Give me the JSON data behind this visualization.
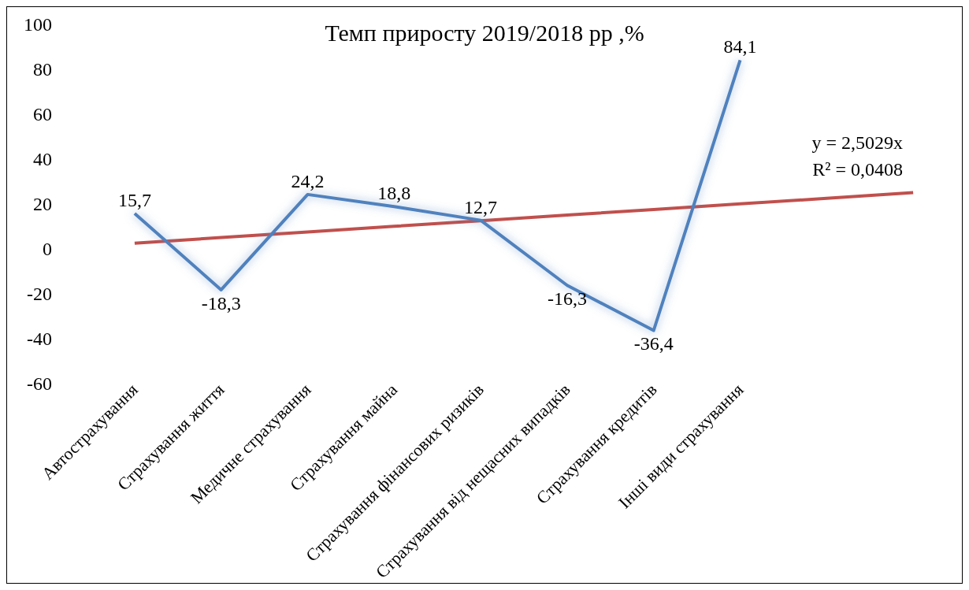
{
  "chart_data": {
    "type": "line",
    "title": "Темп приросту 2019/2018 рр ,%",
    "categories": [
      "Автострахування",
      "Страхування життя",
      "Медичне страхування",
      "Страхування майна",
      "Страхування фінансових ризиків",
      "Страхування від нещасних випадків",
      "Страхування кредитів",
      "Інші види страхування",
      null,
      null
    ],
    "series": [
      {
        "color": "#4f81bd",
        "values": [
          15.7,
          -18.3,
          24.2,
          18.8,
          12.7,
          -16.3,
          -36.4,
          84.1,
          null,
          null
        ],
        "value_labels": [
          "15,7",
          "-18,3",
          "24,2",
          "18,8",
          "12,7",
          "-16,3",
          "-36,4",
          "84,1",
          null,
          null
        ]
      },
      {
        "type": "line",
        "color": "#c0504d",
        "values": [
          2.5,
          5.0,
          7.5,
          10.0,
          12.5,
          15.0,
          17.5,
          20.0,
          22.5,
          25.0
        ]
      }
    ],
    "annotations": [
      "y = 2,5029x",
      "R² = 0,0408"
    ],
    "ylim": [
      -60,
      100
    ],
    "yticks": [
      -60,
      -40,
      -20,
      0,
      20,
      40,
      60,
      80,
      100
    ],
    "grid": false,
    "marker": "none",
    "line_style": "solid"
  }
}
